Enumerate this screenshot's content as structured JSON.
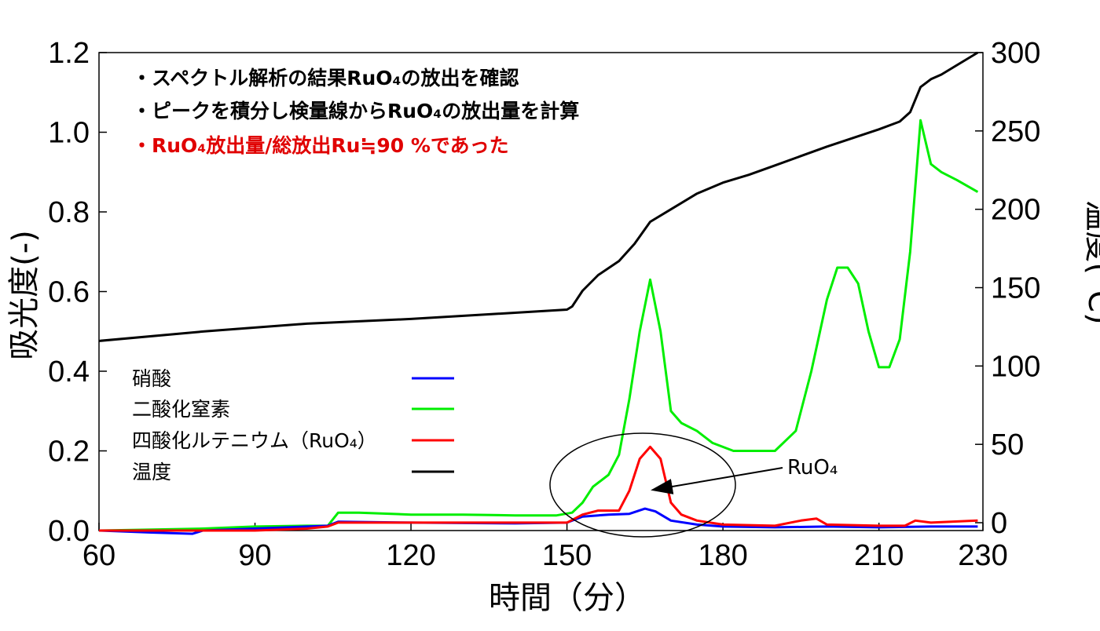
{
  "chart_data": {
    "type": "line",
    "title": "",
    "xlabel": "時間（分）",
    "ylabel_left": "吸光度(-)",
    "ylabel_right": "温度(°C)",
    "xlim": [
      60,
      230
    ],
    "ylim_left": [
      0.0,
      1.2
    ],
    "ylim_right": [
      -5,
      300
    ],
    "x_ticks": [
      "60",
      "90",
      "120",
      "150",
      "180",
      "210",
      "230"
    ],
    "y_left_ticks": [
      "0.0",
      "0.2",
      "0.4",
      "0.6",
      "0.8",
      "1.0",
      "1.2"
    ],
    "y_right_ticks": [
      "0",
      "50",
      "100",
      "150",
      "200",
      "250",
      "300"
    ],
    "grid": false,
    "notes": [
      {
        "text": "・スペクトル解析の結果RuO₄の放出を確認",
        "color": "#000000"
      },
      {
        "text": "・ピークを積分し検量線からRuO₄の放出量を計算",
        "color": "#000000"
      },
      {
        "text": "・RuO₄放出量/総放出Ru≒90 %であった",
        "color": "#e00000"
      }
    ],
    "annotation": {
      "text": "RuO₄",
      "points_to_x": 165,
      "points_to_y": 0.1
    },
    "legend_position": "left-center",
    "series": [
      {
        "name": "硝酸",
        "axis": "left",
        "color": "#0000ff",
        "x": [
          60,
          70,
          78,
          80,
          90,
          100,
          104,
          106,
          120,
          140,
          150,
          153,
          158,
          162,
          165,
          167,
          170,
          175,
          180,
          190,
          200,
          210,
          220,
          229
        ],
        "y": [
          0.0,
          -0.005,
          -0.008,
          0.0,
          0.005,
          0.01,
          0.012,
          0.022,
          0.02,
          0.018,
          0.02,
          0.035,
          0.04,
          0.042,
          0.055,
          0.048,
          0.025,
          0.015,
          0.01,
          0.008,
          0.01,
          0.008,
          0.01,
          0.01
        ]
      },
      {
        "name": "二酸化窒素",
        "axis": "left",
        "color": "#00ee00",
        "x": [
          60,
          80,
          90,
          100,
          104,
          106,
          110,
          120,
          130,
          140,
          148,
          151,
          153,
          155,
          158,
          160,
          162,
          164,
          166,
          168,
          170,
          172,
          175,
          178,
          182,
          186,
          190,
          194,
          197,
          200,
          202,
          204,
          206,
          208,
          210,
          212,
          214,
          216,
          218,
          220,
          222,
          225,
          229
        ],
        "y": [
          0.0,
          0.005,
          0.01,
          0.012,
          0.012,
          0.045,
          0.045,
          0.04,
          0.04,
          0.038,
          0.038,
          0.045,
          0.07,
          0.11,
          0.14,
          0.19,
          0.33,
          0.5,
          0.63,
          0.5,
          0.3,
          0.27,
          0.25,
          0.22,
          0.2,
          0.2,
          0.2,
          0.25,
          0.4,
          0.58,
          0.66,
          0.66,
          0.62,
          0.5,
          0.41,
          0.41,
          0.48,
          0.7,
          1.03,
          0.92,
          0.9,
          0.88,
          0.85
        ]
      },
      {
        "name": "四酸化ルテニウム（RuO₄）",
        "axis": "left",
        "color": "#ff0000",
        "x": [
          60,
          90,
          100,
          104,
          106,
          120,
          140,
          150,
          153,
          156,
          160,
          162,
          164,
          166,
          168,
          170,
          172,
          175,
          180,
          190,
          195,
          198,
          200,
          210,
          215,
          217,
          220,
          229
        ],
        "y": [
          0.0,
          0.0,
          0.005,
          0.01,
          0.02,
          0.02,
          0.02,
          0.02,
          0.04,
          0.05,
          0.05,
          0.1,
          0.18,
          0.21,
          0.18,
          0.07,
          0.04,
          0.025,
          0.015,
          0.012,
          0.025,
          0.03,
          0.015,
          0.012,
          0.012,
          0.025,
          0.02,
          0.025
        ]
      },
      {
        "name": "温度",
        "axis": "right",
        "color": "#000000",
        "x": [
          60,
          80,
          100,
          120,
          140,
          150,
          151,
          153,
          156,
          160,
          163,
          166,
          170,
          175,
          180,
          185,
          190,
          200,
          210,
          214,
          216,
          218,
          220,
          222,
          225,
          229
        ],
        "y": [
          116,
          122,
          127,
          130,
          134,
          136,
          138,
          148,
          158,
          167,
          178,
          192,
          200,
          210,
          217,
          222,
          228,
          240,
          251,
          256,
          262,
          278,
          283,
          286,
          292,
          300
        ]
      }
    ]
  }
}
